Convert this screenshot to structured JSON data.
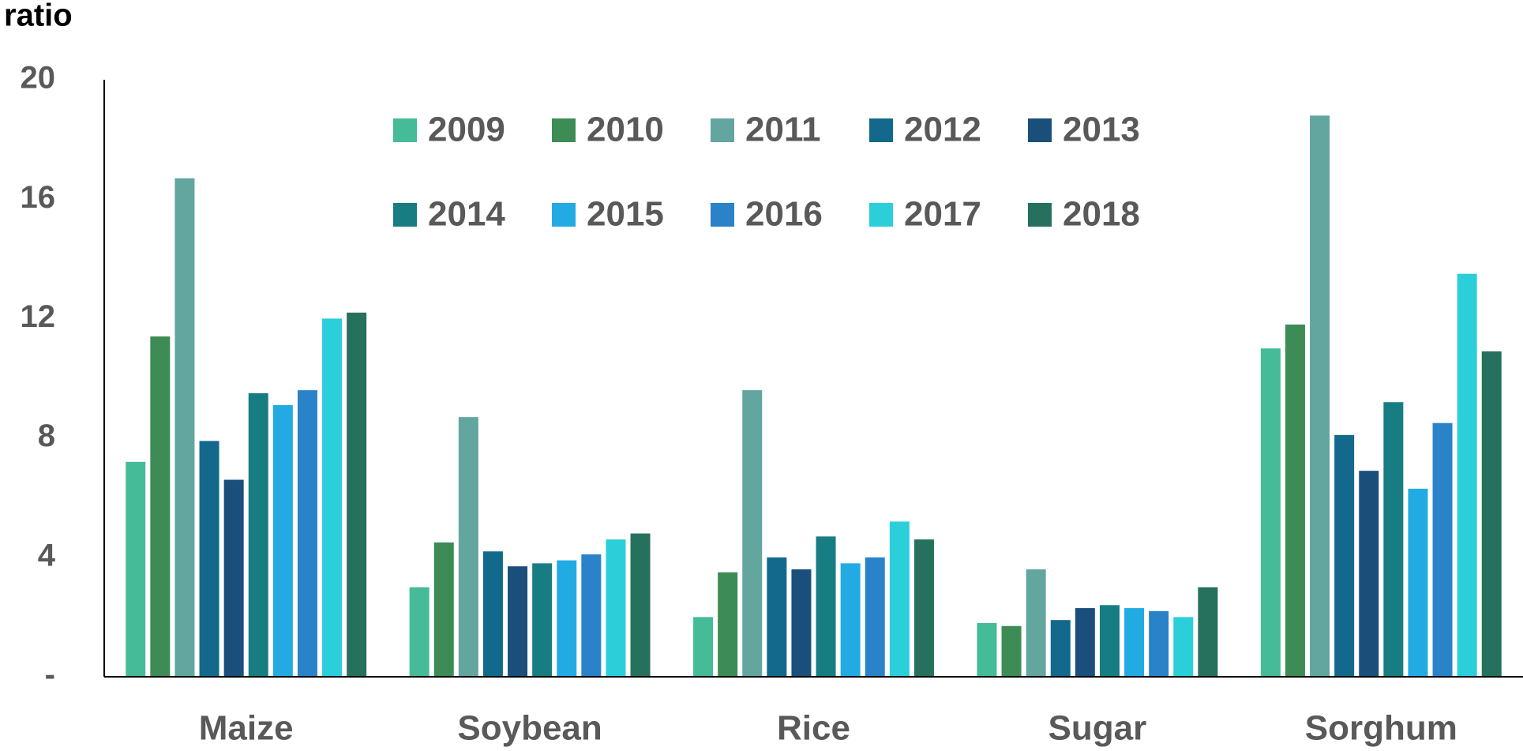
{
  "chart_data": {
    "type": "bar",
    "y_axis_label": "ratio",
    "categories": [
      "Maize",
      "Soybean",
      "Rice",
      "Sugar",
      "Sorghum"
    ],
    "series": [
      {
        "name": "2009",
        "color": "#45bb98",
        "values": [
          7.2,
          3.0,
          2.0,
          1.8,
          11.0
        ]
      },
      {
        "name": "2010",
        "color": "#3d8b55",
        "values": [
          11.4,
          4.5,
          3.5,
          1.7,
          11.8
        ]
      },
      {
        "name": "2011",
        "color": "#63a59f",
        "values": [
          16.7,
          8.7,
          9.6,
          3.6,
          18.8
        ]
      },
      {
        "name": "2012",
        "color": "#13698c",
        "values": [
          7.9,
          4.2,
          4.0,
          1.9,
          8.1
        ]
      },
      {
        "name": "2013",
        "color": "#1b4f7b",
        "values": [
          6.6,
          3.7,
          3.6,
          2.3,
          6.9
        ]
      },
      {
        "name": "2014",
        "color": "#187d82",
        "values": [
          9.5,
          3.8,
          4.7,
          2.4,
          9.2
        ]
      },
      {
        "name": "2015",
        "color": "#22abe3",
        "values": [
          9.1,
          3.9,
          3.8,
          2.3,
          6.3
        ]
      },
      {
        "name": "2016",
        "color": "#2a83c8",
        "values": [
          9.6,
          4.1,
          4.0,
          2.2,
          8.5
        ]
      },
      {
        "name": "2017",
        "color": "#2acfda",
        "values": [
          12.0,
          4.6,
          5.2,
          2.0,
          13.5
        ]
      },
      {
        "name": "2018",
        "color": "#26705e",
        "values": [
          12.2,
          4.8,
          4.6,
          3.0,
          10.9
        ]
      }
    ],
    "ylim": [
      0,
      20
    ],
    "yticks": [
      {
        "value": 0,
        "label": "-"
      },
      4,
      8,
      12,
      16,
      20
    ],
    "grid": false,
    "legend": "top"
  }
}
